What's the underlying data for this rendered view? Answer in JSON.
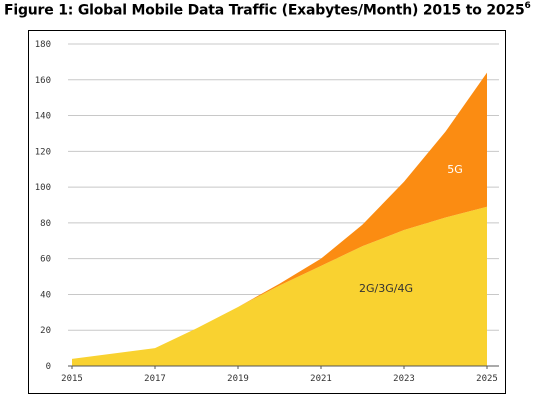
{
  "figure": {
    "title": "Figure 1: Global Mobile Data Traffic (Exabytes/Month) 2015 to 2025",
    "footnote": "6"
  },
  "chart_data": {
    "type": "area",
    "stacked": true,
    "x": [
      2015,
      2016,
      2017,
      2018,
      2019,
      2020,
      2021,
      2022,
      2023,
      2024,
      2025
    ],
    "series": [
      {
        "name": "2G/3G/4G",
        "color": "#f9d230",
        "values": [
          4,
          7,
          10,
          21,
          33,
          45,
          56,
          67,
          76,
          83,
          89
        ]
      },
      {
        "name": "5G",
        "color": "#fb8c12",
        "values": [
          0,
          0,
          0,
          0,
          0,
          1,
          4,
          12,
          27,
          48,
          75
        ]
      }
    ],
    "xticks": [
      "2015",
      "2017",
      "2019",
      "2021",
      "2023",
      "2025"
    ],
    "yticks": [
      "0",
      "20",
      "40",
      "60",
      "80",
      "100",
      "120",
      "140",
      "160",
      "180"
    ],
    "xlim": [
      2015,
      2025
    ],
    "ylim": [
      0,
      180
    ],
    "grid": true,
    "legend": "inline labels"
  }
}
